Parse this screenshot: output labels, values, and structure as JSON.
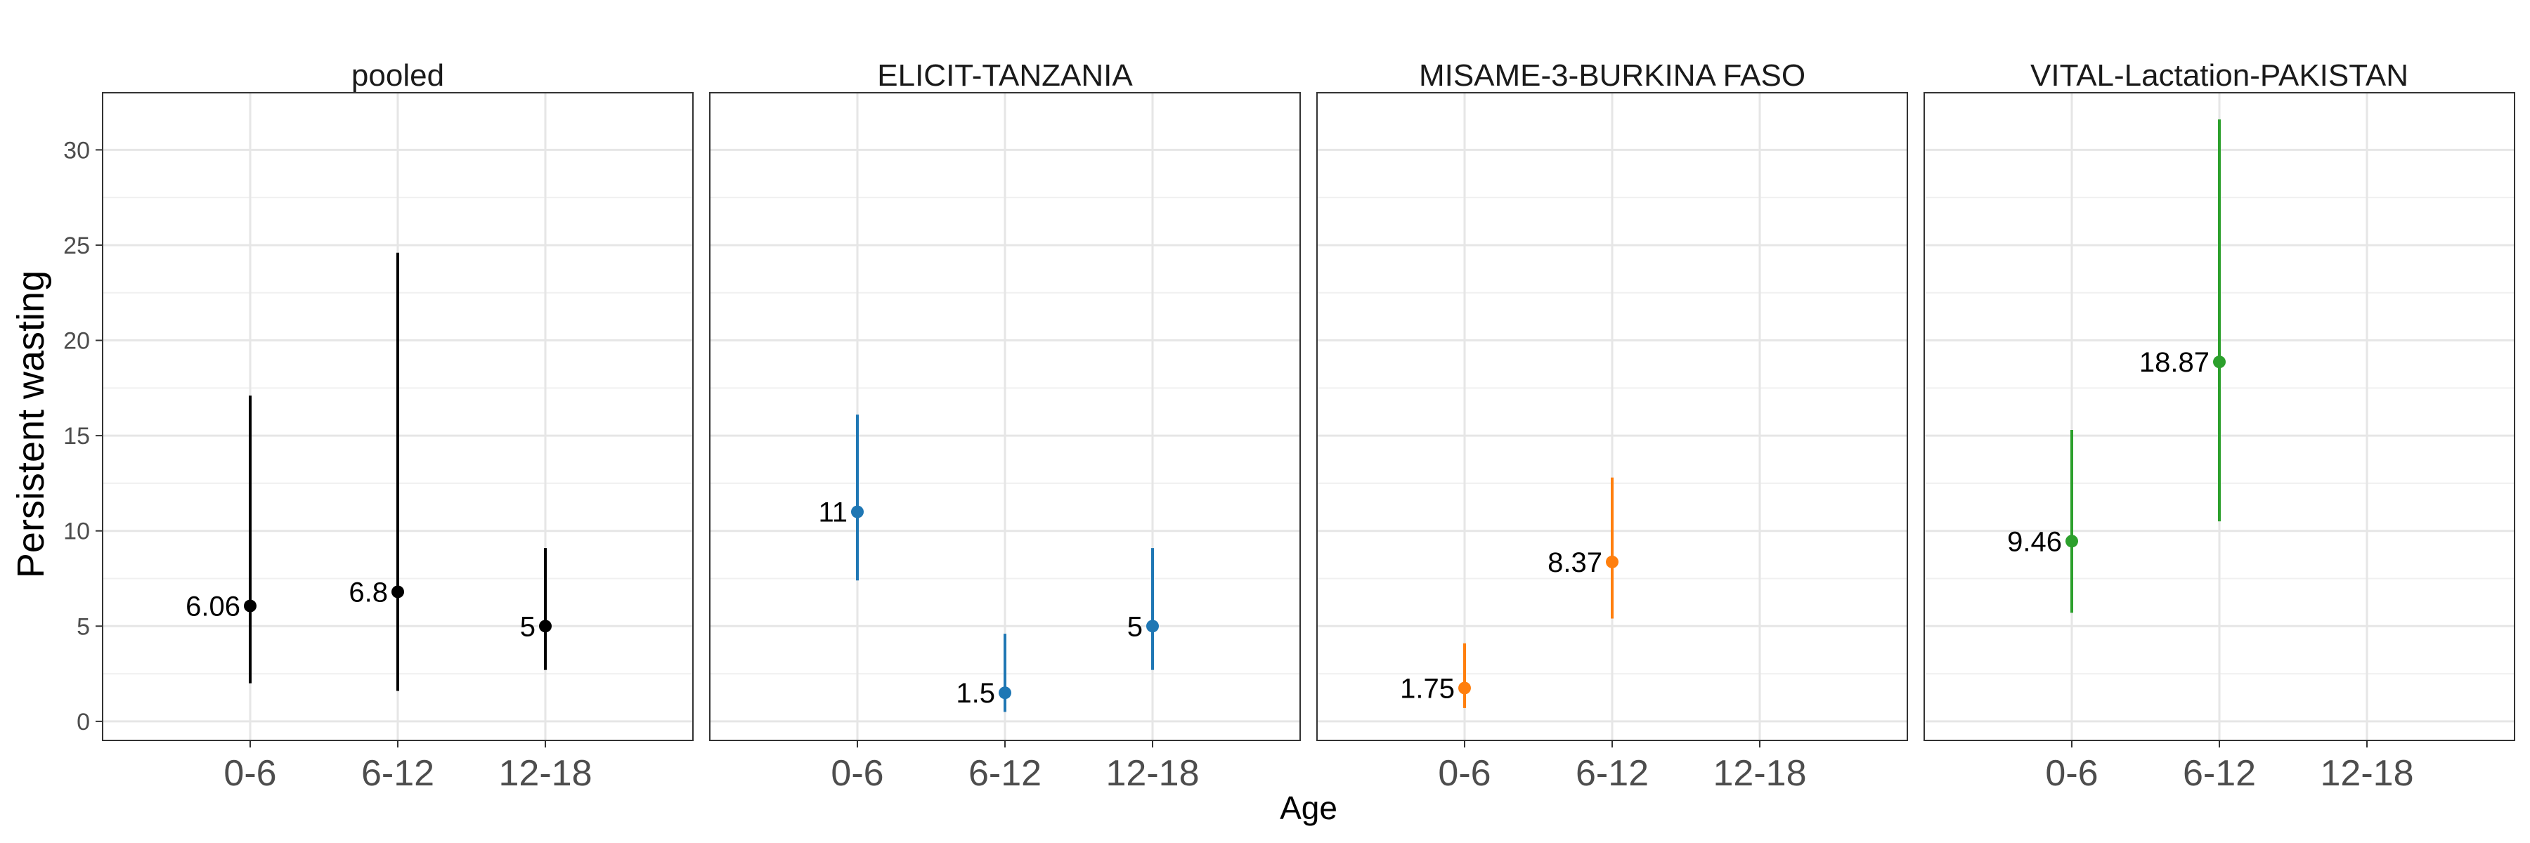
{
  "chart_data": {
    "type": "scatter",
    "ylabel": "Persistent wasting",
    "xlabel": "Age",
    "ylim": [
      -1,
      33
    ],
    "yticks": [
      0,
      5,
      10,
      15,
      20,
      25,
      30
    ],
    "categories": [
      "0-6",
      "6-12",
      "12-18"
    ],
    "grid": true,
    "legend": "none",
    "panels": [
      {
        "name": "pooled",
        "color": "#000000",
        "points": [
          {
            "x": "0-6",
            "y": 6.06,
            "lower": 2.0,
            "upper": 17.1,
            "label": "6.06"
          },
          {
            "x": "6-12",
            "y": 6.8,
            "lower": 1.6,
            "upper": 24.6,
            "label": "6.8"
          },
          {
            "x": "12-18",
            "y": 5.0,
            "lower": 2.7,
            "upper": 9.1,
            "label": "5"
          }
        ]
      },
      {
        "name": "ELICIT-TANZANIA",
        "color": "#1f77b4",
        "points": [
          {
            "x": "0-6",
            "y": 11.0,
            "lower": 7.4,
            "upper": 16.1,
            "label": "11"
          },
          {
            "x": "6-12",
            "y": 1.5,
            "lower": 0.5,
            "upper": 4.6,
            "label": "1.5"
          },
          {
            "x": "12-18",
            "y": 5.0,
            "lower": 2.7,
            "upper": 9.1,
            "label": "5"
          }
        ]
      },
      {
        "name": "MISAME-3-BURKINA FASO",
        "color": "#ff7f0e",
        "points": [
          {
            "x": "0-6",
            "y": 1.75,
            "lower": 0.7,
            "upper": 4.1,
            "label": "1.75"
          },
          {
            "x": "6-12",
            "y": 8.37,
            "lower": 5.4,
            "upper": 12.8,
            "label": "8.37"
          }
        ]
      },
      {
        "name": "VITAL-Lactation-PAKISTAN",
        "color": "#2ca02c",
        "points": [
          {
            "x": "0-6",
            "y": 9.46,
            "lower": 5.7,
            "upper": 15.3,
            "label": "9.46"
          },
          {
            "x": "6-12",
            "y": 18.87,
            "lower": 10.5,
            "upper": 31.6,
            "label": "18.87"
          }
        ]
      }
    ]
  }
}
